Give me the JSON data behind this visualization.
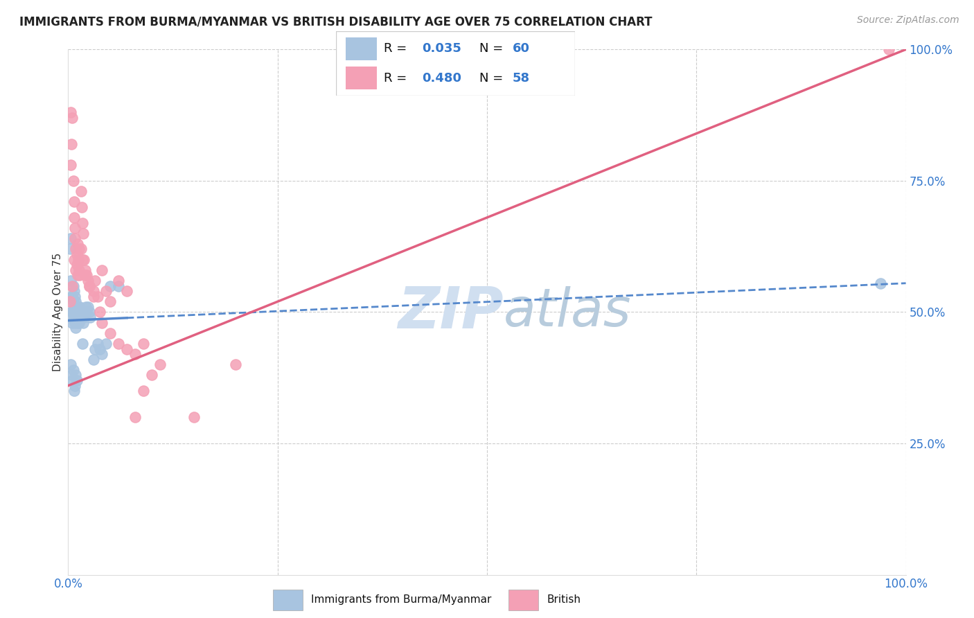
{
  "title": "IMMIGRANTS FROM BURMA/MYANMAR VS BRITISH DISABILITY AGE OVER 75 CORRELATION CHART",
  "source": "Source: ZipAtlas.com",
  "ylabel": "Disability Age Over 75",
  "xlim": [
    0,
    1
  ],
  "ylim": [
    0,
    1
  ],
  "blue_color": "#a8c4e0",
  "pink_color": "#f4a0b5",
  "blue_line_color": "#5588cc",
  "pink_line_color": "#e06080",
  "watermark_color": "#d0dff0",
  "legend_blue_R": "0.035",
  "legend_blue_N": "60",
  "legend_pink_R": "0.480",
  "legend_pink_N": "58",
  "blue_scatter_x": [
    0.002,
    0.003,
    0.003,
    0.004,
    0.004,
    0.005,
    0.005,
    0.005,
    0.006,
    0.006,
    0.006,
    0.007,
    0.007,
    0.007,
    0.008,
    0.008,
    0.008,
    0.008,
    0.009,
    0.009,
    0.009,
    0.01,
    0.01,
    0.01,
    0.011,
    0.011,
    0.012,
    0.012,
    0.013,
    0.013,
    0.014,
    0.014,
    0.015,
    0.016,
    0.017,
    0.018,
    0.019,
    0.02,
    0.021,
    0.022,
    0.024,
    0.025,
    0.026,
    0.03,
    0.032,
    0.035,
    0.038,
    0.04,
    0.045,
    0.05,
    0.003,
    0.004,
    0.005,
    0.006,
    0.007,
    0.008,
    0.009,
    0.01,
    0.06,
    0.97
  ],
  "blue_scatter_y": [
    0.62,
    0.64,
    0.56,
    0.53,
    0.5,
    0.5,
    0.48,
    0.53,
    0.52,
    0.55,
    0.49,
    0.51,
    0.54,
    0.5,
    0.49,
    0.51,
    0.53,
    0.48,
    0.5,
    0.52,
    0.47,
    0.5,
    0.49,
    0.51,
    0.48,
    0.5,
    0.49,
    0.51,
    0.5,
    0.48,
    0.49,
    0.51,
    0.5,
    0.49,
    0.44,
    0.48,
    0.49,
    0.5,
    0.51,
    0.5,
    0.51,
    0.5,
    0.49,
    0.41,
    0.43,
    0.44,
    0.43,
    0.42,
    0.44,
    0.55,
    0.4,
    0.38,
    0.37,
    0.39,
    0.35,
    0.36,
    0.38,
    0.37,
    0.55,
    0.555
  ],
  "pink_scatter_x": [
    0.002,
    0.003,
    0.004,
    0.005,
    0.006,
    0.007,
    0.007,
    0.008,
    0.008,
    0.009,
    0.01,
    0.01,
    0.011,
    0.012,
    0.013,
    0.014,
    0.015,
    0.016,
    0.017,
    0.018,
    0.019,
    0.02,
    0.022,
    0.024,
    0.025,
    0.03,
    0.032,
    0.035,
    0.038,
    0.04,
    0.045,
    0.05,
    0.06,
    0.07,
    0.08,
    0.09,
    0.1,
    0.11,
    0.15,
    0.2,
    0.003,
    0.005,
    0.007,
    0.009,
    0.011,
    0.013,
    0.015,
    0.017,
    0.02,
    0.025,
    0.03,
    0.04,
    0.05,
    0.06,
    0.07,
    0.08,
    0.09,
    0.98
  ],
  "pink_scatter_y": [
    0.52,
    0.78,
    0.82,
    0.55,
    0.75,
    0.71,
    0.68,
    0.66,
    0.64,
    0.62,
    0.61,
    0.59,
    0.57,
    0.6,
    0.58,
    0.57,
    0.73,
    0.7,
    0.67,
    0.65,
    0.6,
    0.58,
    0.57,
    0.56,
    0.55,
    0.54,
    0.56,
    0.53,
    0.5,
    0.58,
    0.54,
    0.52,
    0.56,
    0.54,
    0.3,
    0.35,
    0.38,
    0.4,
    0.3,
    0.4,
    0.88,
    0.87,
    0.6,
    0.58,
    0.63,
    0.62,
    0.62,
    0.6,
    0.57,
    0.55,
    0.53,
    0.48,
    0.46,
    0.44,
    0.43,
    0.42,
    0.44,
    1.0
  ],
  "blue_line_y_at_0": 0.484,
  "blue_line_y_at_1": 0.555,
  "pink_line_y_at_0": 0.36,
  "pink_line_y_at_1": 1.0
}
